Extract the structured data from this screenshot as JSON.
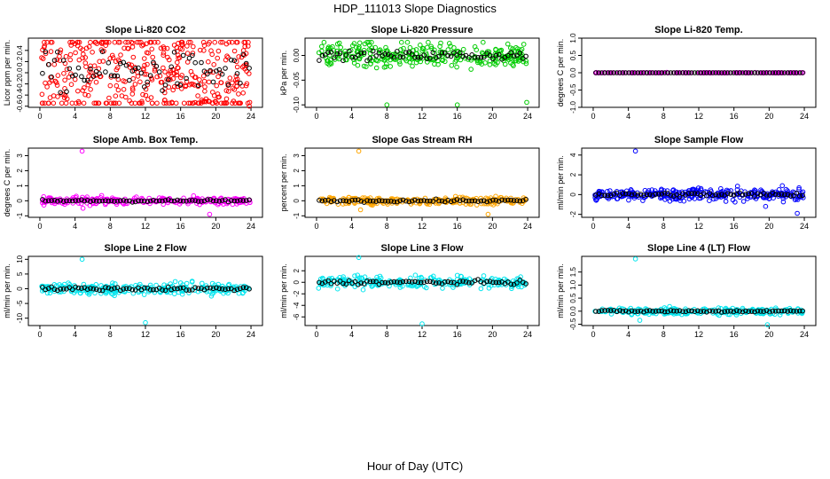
{
  "figure": {
    "title": "HDP_111013  Slope Diagnostics",
    "xlabel": "Hour of Day (UTC)"
  },
  "chart_data": [
    {
      "type": "scatter",
      "title": "Slope Li-820 CO2",
      "ylabel": "Licor ppm per min.",
      "ylim": [
        -0.62,
        0.62
      ],
      "yticks": [
        -0.6,
        -0.4,
        -0.2,
        0.0,
        0.2,
        0.4
      ],
      "ytick_labels": [
        "-0.6",
        "-0.4",
        "-0.2",
        "0.0",
        "0.2",
        "0.4"
      ],
      "xlim": [
        -0.5,
        24.5
      ],
      "xticks": [
        0,
        4,
        8,
        12,
        16,
        20,
        24
      ],
      "color": "#ff0000",
      "center": 0.0,
      "spread": 0.5,
      "tight": 0,
      "density": 420,
      "outliers": [
        [
          4.0,
          0.52
        ],
        [
          12.1,
          0.52
        ],
        [
          23.8,
          -0.6
        ],
        [
          16.2,
          0.5
        ]
      ]
    },
    {
      "type": "scatter",
      "title": "Slope Li-820 Pressure",
      "ylabel": "kPa per min.",
      "ylim": [
        -0.105,
        0.035
      ],
      "yticks": [
        -0.1,
        -0.05,
        0.0
      ],
      "ytick_labels": [
        "-0.10",
        "-0.05",
        "0.00"
      ],
      "xlim": [
        -0.5,
        24.5
      ],
      "xticks": [
        0,
        4,
        8,
        12,
        16,
        20,
        24
      ],
      "color": "#00cc00",
      "center": 0.0,
      "spread": 0.012,
      "tight": 0,
      "density": 300,
      "outliers": [
        [
          8.0,
          -0.1
        ],
        [
          16.0,
          -0.1
        ],
        [
          23.9,
          -0.095
        ]
      ]
    },
    {
      "type": "scatter",
      "title": "Slope Li-820 Temp.",
      "ylabel": "degrees C per min.",
      "ylim": [
        -1.0,
        1.0
      ],
      "yticks": [
        -1.0,
        -0.5,
        0.0,
        0.5,
        1.0
      ],
      "ytick_labels": [
        "-1.0",
        "-0.5",
        "0.0",
        "0.5",
        "1.0"
      ],
      "xlim": [
        -0.5,
        24.5
      ],
      "xticks": [
        0,
        4,
        8,
        12,
        16,
        20,
        24
      ],
      "color": "#ff00ff",
      "center": 0.0,
      "spread": 0.0,
      "tight": 1,
      "density": 140,
      "outliers": []
    },
    {
      "type": "scatter",
      "title": "Slope Amb. Box Temp.",
      "ylabel": "degrees C per min.",
      "ylim": [
        -1.1,
        3.5
      ],
      "yticks": [
        -1,
        0,
        1,
        2,
        3
      ],
      "ytick_labels": [
        "-1",
        "0",
        "1",
        "2",
        "3"
      ],
      "xlim": [
        -0.5,
        24.5
      ],
      "xticks": [
        0,
        4,
        8,
        12,
        16,
        20,
        24
      ],
      "color": "#ff00ff",
      "center": 0.0,
      "spread": 0.12,
      "tight": 0,
      "density": 260,
      "outliers": [
        [
          4.8,
          3.3
        ],
        [
          19.3,
          -0.9
        ],
        [
          4.9,
          -0.5
        ]
      ]
    },
    {
      "type": "scatter",
      "title": "Slope Gas Stream RH",
      "ylabel": "percent per min.",
      "ylim": [
        -1.1,
        3.5
      ],
      "yticks": [
        -1,
        0,
        1,
        2,
        3
      ],
      "ytick_labels": [
        "-1",
        "0",
        "1",
        "2",
        "3"
      ],
      "xlim": [
        -0.5,
        24.5
      ],
      "xticks": [
        0,
        4,
        8,
        12,
        16,
        20,
        24
      ],
      "color": "#ffa500",
      "center": 0.0,
      "spread": 0.12,
      "tight": 0,
      "density": 260,
      "outliers": [
        [
          4.8,
          3.3
        ],
        [
          19.5,
          -0.9
        ],
        [
          5.0,
          -0.6
        ]
      ]
    },
    {
      "type": "scatter",
      "title": "Slope Sample Flow",
      "ylabel": "ml/min per min.",
      "ylim": [
        -2.3,
        4.7
      ],
      "yticks": [
        -2,
        0,
        2,
        4
      ],
      "ytick_labels": [
        "-2",
        "0",
        "2",
        "4"
      ],
      "xlim": [
        -0.5,
        24.5
      ],
      "xticks": [
        0,
        4,
        8,
        12,
        16,
        20,
        24
      ],
      "color": "#0000ff",
      "center": 0.0,
      "spread": 0.3,
      "tight": 0,
      "density": 320,
      "outliers": [
        [
          4.8,
          4.4
        ],
        [
          23.2,
          -1.9
        ],
        [
          19.6,
          -1.2
        ],
        [
          21.5,
          0.9
        ]
      ]
    },
    {
      "type": "scatter",
      "title": "Slope Line 2 Flow",
      "ylabel": "ml/min per min.",
      "ylim": [
        -12.5,
        11.0
      ],
      "yticks": [
        -10,
        -5,
        0,
        5,
        10
      ],
      "ytick_labels": [
        "-10",
        "-5",
        "0",
        "5",
        "10"
      ],
      "xlim": [
        -0.5,
        24.5
      ],
      "xticks": [
        0,
        4,
        8,
        12,
        16,
        20,
        24
      ],
      "color": "#00e5ee",
      "center": 0.0,
      "spread": 0.9,
      "tight": 0,
      "density": 260,
      "outliers": [
        [
          4.8,
          10.0
        ],
        [
          12.0,
          -11.5
        ],
        [
          16.0,
          2.0
        ],
        [
          19.5,
          -2.5
        ]
      ]
    },
    {
      "type": "scatter",
      "title": "Slope Line 3 Flow",
      "ylabel": "ml/min per min.",
      "ylim": [
        -7.5,
        4.5
      ],
      "yticks": [
        -6,
        -4,
        -2,
        0,
        2
      ],
      "ytick_labels": [
        "-6",
        "-4",
        "-2",
        "0",
        "2"
      ],
      "xlim": [
        -0.5,
        24.5
      ],
      "xticks": [
        0,
        4,
        8,
        12,
        16,
        20,
        24
      ],
      "color": "#00e5ee",
      "center": 0.0,
      "spread": 0.5,
      "tight": 0,
      "density": 260,
      "outliers": [
        [
          4.8,
          4.3
        ],
        [
          12.0,
          -7.2
        ],
        [
          16.0,
          1.2
        ],
        [
          19.6,
          -1.0
        ],
        [
          5.3,
          -1.3
        ]
      ]
    },
    {
      "type": "scatter",
      "title": "Slope Line 4 (LT) Flow",
      "ylabel": "ml/min per min.",
      "ylim": [
        -0.55,
        2.1
      ],
      "yticks": [
        -0.5,
        0.0,
        0.5,
        1.0,
        1.5
      ],
      "ytick_labels": [
        "-0.5",
        "0.0",
        "0.5",
        "1.0",
        "1.5"
      ],
      "xlim": [
        -0.5,
        24.5
      ],
      "xticks": [
        0,
        4,
        8,
        12,
        16,
        20,
        24
      ],
      "color": "#00e5ee",
      "center": 0.0,
      "spread": 0.06,
      "tight": 0,
      "density": 260,
      "outliers": [
        [
          4.8,
          2.0
        ],
        [
          19.8,
          -0.52
        ],
        [
          5.3,
          -0.35
        ]
      ]
    }
  ]
}
